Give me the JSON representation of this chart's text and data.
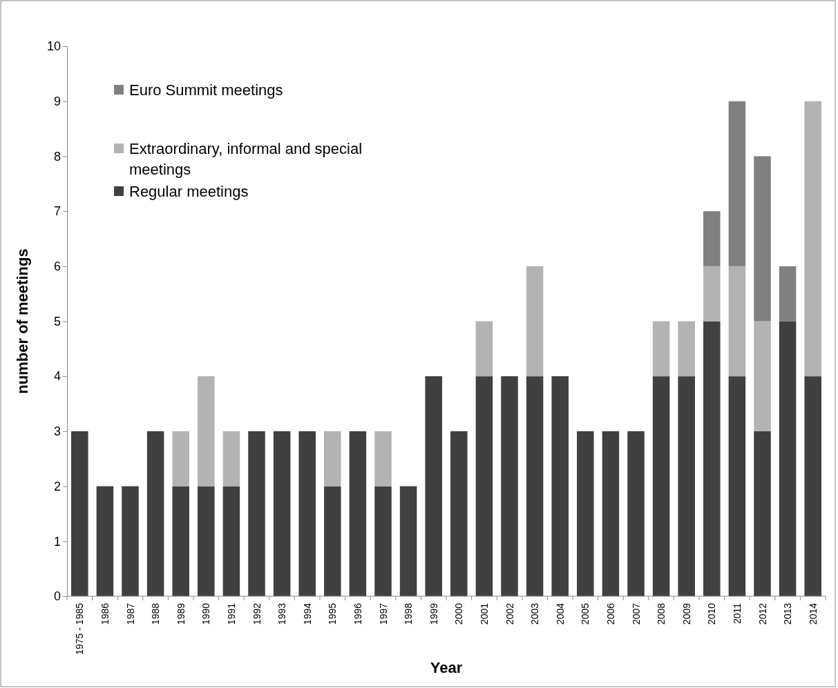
{
  "chart_data": {
    "type": "bar",
    "stacked": true,
    "xlabel": "Year",
    "ylabel": "number of meetings",
    "categories": [
      "1975 - 1985",
      "1986",
      "1987",
      "1988",
      "1989",
      "1990",
      "1991",
      "1992",
      "1993",
      "1994",
      "1995",
      "1996",
      "1997",
      "1998",
      "1999",
      "2000",
      "2001",
      "2002",
      "2003",
      "2004",
      "2005",
      "2006",
      "2007",
      "2008",
      "2009",
      "2010",
      "2011",
      "2012",
      "2013",
      "2014"
    ],
    "series": [
      {
        "name": "Regular meetings",
        "color": "#404040",
        "values": [
          3,
          2,
          2,
          3,
          2,
          2,
          2,
          3,
          3,
          3,
          2,
          3,
          2,
          2,
          4,
          3,
          4,
          4,
          4,
          4,
          3,
          3,
          3,
          4,
          4,
          5,
          4,
          3,
          5,
          4
        ]
      },
      {
        "name": "Extraordinary, informal and special meetings",
        "color": "#b3b3b3",
        "values": [
          0,
          0,
          0,
          0,
          1,
          2,
          1,
          0,
          0,
          0,
          1,
          0,
          1,
          0,
          0,
          0,
          1,
          0,
          2,
          0,
          0,
          0,
          0,
          1,
          1,
          1,
          2,
          2,
          0,
          5
        ]
      },
      {
        "name": "Euro Summit meetings",
        "color": "#808080",
        "values": [
          0,
          0,
          0,
          0,
          0,
          0,
          0,
          0,
          0,
          0,
          0,
          0,
          0,
          0,
          0,
          0,
          0,
          0,
          0,
          0,
          0,
          0,
          0,
          0,
          0,
          1,
          3,
          3,
          1,
          0
        ]
      }
    ],
    "ylim": [
      0,
      10
    ],
    "yticks": [
      0,
      1,
      2,
      3,
      4,
      5,
      6,
      7,
      8,
      9,
      10
    ],
    "grid": false,
    "legend": "top left"
  }
}
